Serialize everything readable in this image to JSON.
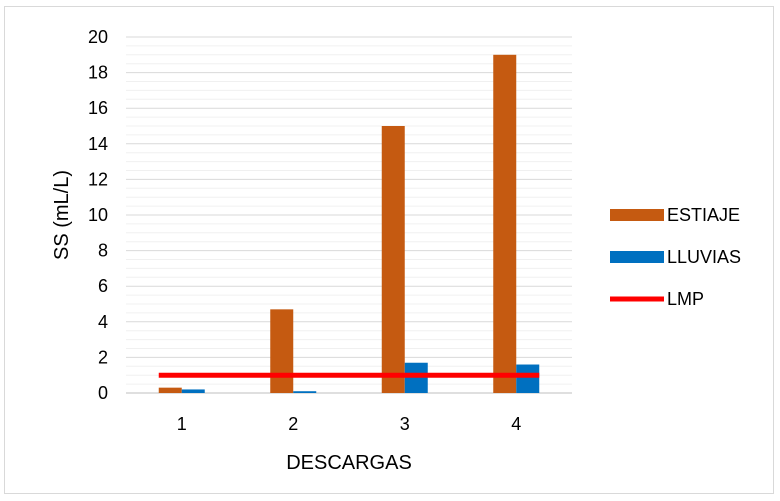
{
  "chart_data": {
    "type": "bar",
    "categories": [
      "1",
      "2",
      "3",
      "4"
    ],
    "series": [
      {
        "name": "ESTIAJE",
        "kind": "bar",
        "color": "#c55a11",
        "values": [
          0.3,
          4.7,
          15.0,
          19.0
        ]
      },
      {
        "name": "LLUVIAS",
        "kind": "bar",
        "color": "#0070c0",
        "values": [
          0.2,
          0.1,
          1.7,
          1.6
        ]
      },
      {
        "name": "LMP",
        "kind": "line",
        "color": "#ff0000",
        "values": [
          1,
          1,
          1,
          1
        ]
      }
    ],
    "title": "",
    "xlabel": "DESCARGAS",
    "ylabel": "SS (mL/L)",
    "ylim": [
      0,
      20
    ],
    "yticks": [
      "0",
      "2",
      "4",
      "6",
      "8",
      "10",
      "12",
      "14",
      "16",
      "18",
      "20"
    ],
    "grid": true,
    "legend_position": "right"
  }
}
